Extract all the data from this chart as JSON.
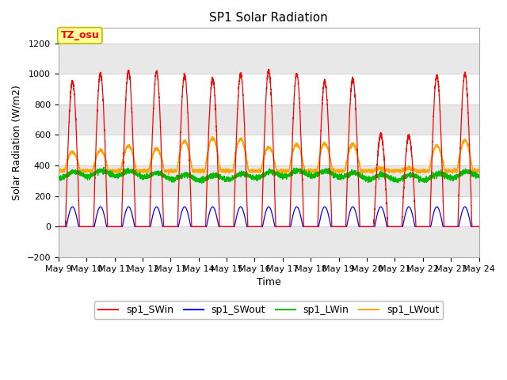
{
  "title": "SP1 Solar Radiation",
  "ylabel": "Solar Radiation (W/m2)",
  "xlabel": "Time",
  "ylim": [
    -200,
    1300
  ],
  "yticks": [
    -200,
    0,
    200,
    400,
    600,
    800,
    1000,
    1200
  ],
  "n_days": 15,
  "xtick_labels": [
    "May 9",
    "May 10",
    "May 11",
    "May 12",
    "May 13",
    "May 14",
    "May 15",
    "May 16",
    "May 17",
    "May 18",
    "May 19",
    "May 20",
    "May 21",
    "May 22",
    "May 23",
    "May 24"
  ],
  "annotation_text": "TZ_osu",
  "annotation_box_color": "#FFFF99",
  "annotation_box_edge": "#BBBB00",
  "colors": {
    "sp1_SWin": "#FF0000",
    "sp1_SWout": "#0000FF",
    "sp1_LWin": "#00BB00",
    "sp1_LWout": "#FFA500"
  },
  "legend_labels": [
    "sp1_SWin",
    "sp1_SWout",
    "sp1_LWin",
    "sp1_LWout"
  ],
  "bg_color": "#FFFFFF",
  "plot_bg": "#FFFFFF",
  "band_color": "#E8E8E8",
  "grid_color": "#CCCCCC",
  "title_fontsize": 11,
  "label_fontsize": 9,
  "tick_fontsize": 8
}
